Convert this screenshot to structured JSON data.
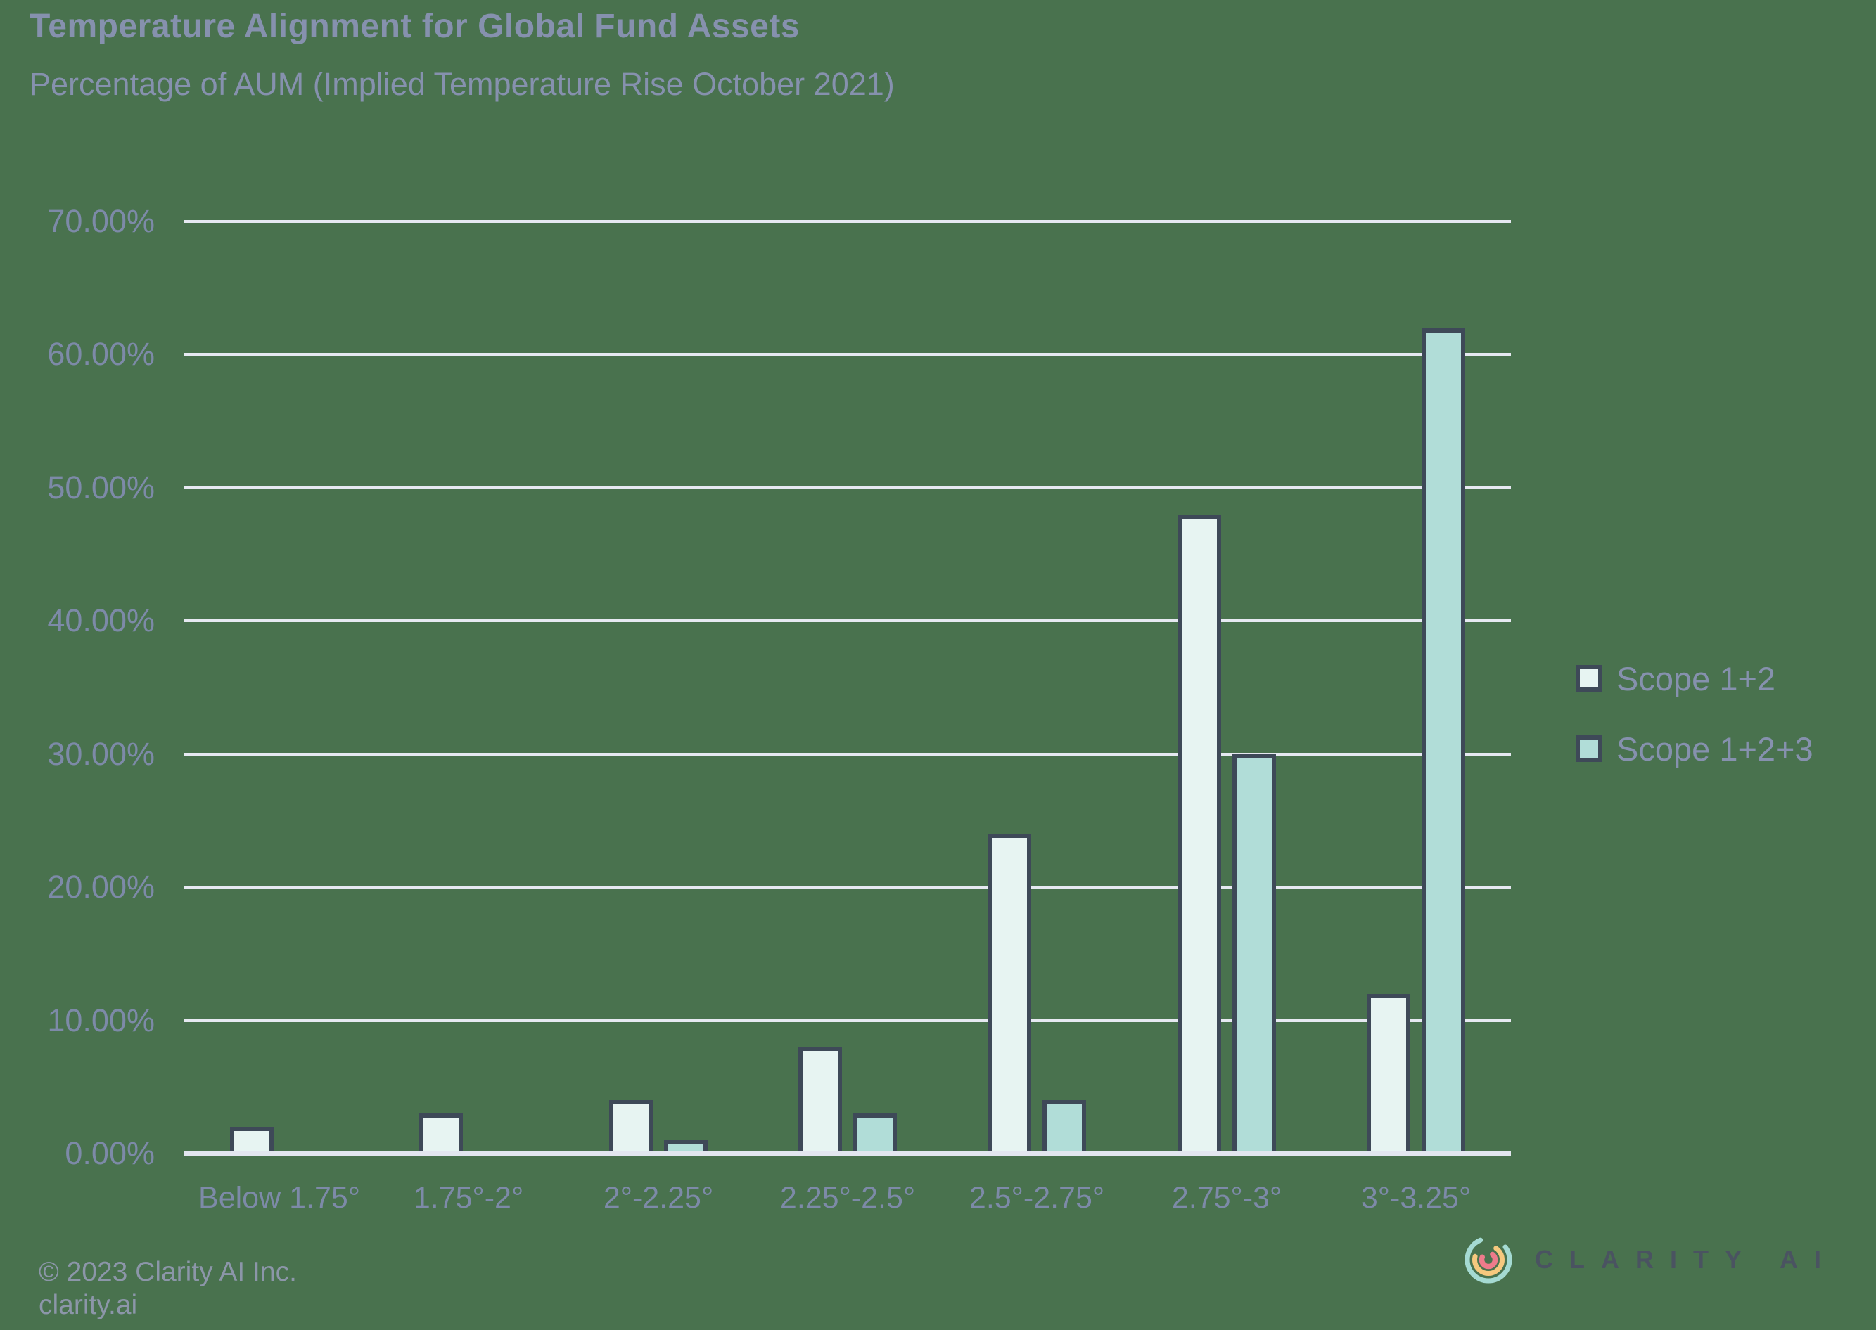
{
  "header": {
    "title": "Temperature Alignment for Global Fund Assets",
    "subtitle": "Percentage of AUM (Implied Temperature Rise October 2021)"
  },
  "footer": {
    "copyright": "© 2023 Clarity AI Inc.",
    "website": "clarity.ai"
  },
  "brand": {
    "logo_text": "CLARITY AI",
    "logo_icon": "clarity-arcs-icon",
    "logo_arc_colors": [
      "#A5DAD2",
      "#F6C87E",
      "#EE7B8B"
    ]
  },
  "colors": {
    "background": "#49724E",
    "heading_text": "#8691AE",
    "axis_text": "#7D8AA8",
    "gridline": "#E6E9F1",
    "bar_border": "#3E4958",
    "scope_1_2_fill": "#E7F4F2",
    "scope_1_2_3_fill": "#B1DDD8"
  },
  "chart_data": {
    "type": "bar",
    "title": "Temperature Alignment for Global Fund Assets",
    "subtitle": "Percentage of AUM (Implied Temperature Rise October 2021)",
    "categories": [
      "Below 1.75°",
      "1.75°-2°",
      "2°-2.25°",
      "2.25°-2.5°",
      "2.5°-2.75°",
      "2.75°-3°",
      "3°-3.25°"
    ],
    "series": [
      {
        "name": "Scope 1+2",
        "color": "#E7F4F2",
        "values": [
          2,
          3,
          4,
          8,
          24,
          48,
          12
        ]
      },
      {
        "name": "Scope 1+2+3",
        "color": "#B1DDD8",
        "values": [
          0,
          0,
          1,
          3,
          4,
          30,
          62
        ]
      }
    ],
    "unit": "percent of AUM",
    "xlabel": "",
    "ylabel": "",
    "ylim": [
      0,
      70
    ],
    "ytick_step": 10,
    "ytick_labels": [
      "0.00%",
      "10.00%",
      "20.00%",
      "30.00%",
      "40.00%",
      "50.00%",
      "60.00%",
      "70.00%"
    ],
    "grid": true,
    "legend_position": "right"
  }
}
